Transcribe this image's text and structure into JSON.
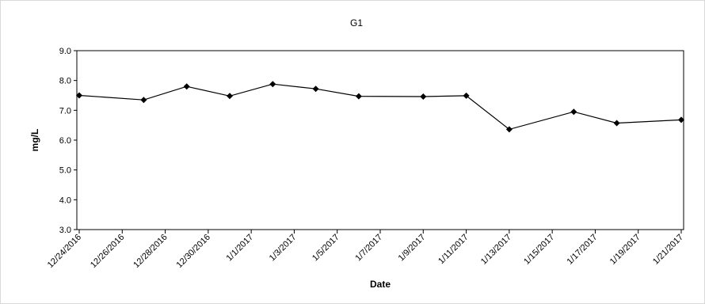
{
  "chart_data": {
    "type": "line",
    "title": "G1",
    "xlabel": "Date",
    "ylabel": "mg/L",
    "ylim": [
      3.0,
      9.0
    ],
    "y_ticks": [
      "3.0",
      "4.0",
      "5.0",
      "6.0",
      "7.0",
      "8.0",
      "9.0"
    ],
    "x_ticks": [
      "12/24/2016",
      "12/26/2016",
      "12/28/2016",
      "12/30/2016",
      "1/1/2017",
      "1/3/2017",
      "1/5/2017",
      "1/7/2017",
      "1/9/2017",
      "1/11/2017",
      "1/13/2017",
      "1/15/2017",
      "1/17/2017",
      "1/19/2017",
      "1/21/2017"
    ],
    "xlim": [
      "12/24/2016",
      "1/21/2017"
    ],
    "grid": false,
    "legend": "none",
    "series": [
      {
        "color": "#000000",
        "marker": "diamond",
        "points": [
          {
            "x": "12/24/2016",
            "y": 7.5
          },
          {
            "x": "12/27/2016",
            "y": 7.35
          },
          {
            "x": "12/29/2016",
            "y": 7.8
          },
          {
            "x": "12/31/2016",
            "y": 7.48
          },
          {
            "x": "1/2/2017",
            "y": 7.88
          },
          {
            "x": "1/4/2017",
            "y": 7.72
          },
          {
            "x": "1/6/2017",
            "y": 7.47
          },
          {
            "x": "1/9/2017",
            "y": 7.46
          },
          {
            "x": "1/11/2017",
            "y": 7.49
          },
          {
            "x": "1/13/2017",
            "y": 6.36
          },
          {
            "x": "1/16/2017",
            "y": 6.95
          },
          {
            "x": "1/18/2017",
            "y": 6.57
          },
          {
            "x": "1/21/2017",
            "y": 6.68
          }
        ]
      }
    ]
  }
}
